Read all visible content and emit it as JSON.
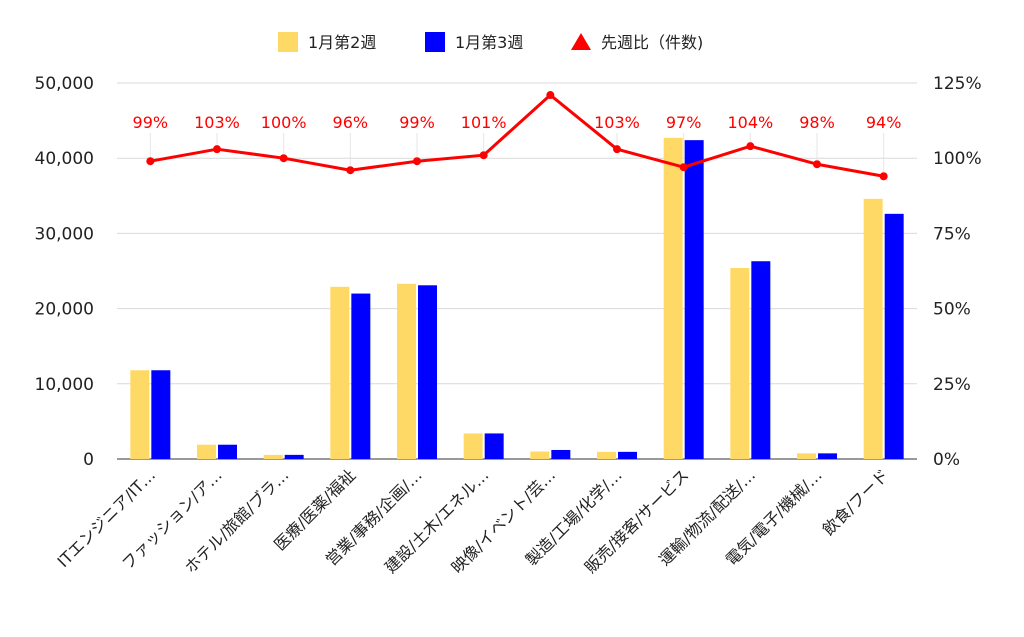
{
  "chart_data": {
    "type": "bar",
    "categories": [
      "ITエンジニア/IT…",
      "ファッション/ア…",
      "ホテル/旅館/ブラ…",
      "医療/医薬/福祉",
      "営業/事務/企画/…",
      "建設/土木/エネル…",
      "映像/イベント/芸…",
      "製造/工場/化学/…",
      "販売/接客/サービス",
      "運輸/物流/配送/…",
      "電気/電子/機械/…",
      "飲食/フード"
    ],
    "series": [
      {
        "name": "1月第2週",
        "type": "bar",
        "axis": "left",
        "color": "#FFD966",
        "values": [
          11800,
          1900,
          550,
          22900,
          23300,
          3400,
          1000,
          950,
          42700,
          25400,
          750,
          34600
        ]
      },
      {
        "name": "1月第3週",
        "type": "bar",
        "axis": "left",
        "color": "#0000FF",
        "values": [
          11800,
          1900,
          550,
          22000,
          23100,
          3400,
          1200,
          950,
          42400,
          26300,
          750,
          32600
        ]
      },
      {
        "name": "先週比（件数)",
        "type": "line",
        "axis": "right",
        "color": "#FF0000",
        "values": [
          99,
          103,
          100,
          96,
          99,
          101,
          121,
          103,
          97,
          104,
          98,
          94
        ],
        "data_labels": [
          "99%",
          "103%",
          "100%",
          "96%",
          "99%",
          "101%",
          "",
          "103%",
          "97%",
          "104%",
          "98%",
          "94%"
        ]
      }
    ],
    "y_left": {
      "ylim": [
        0,
        50000
      ],
      "ticks": [
        0,
        10000,
        20000,
        30000,
        40000,
        50000
      ],
      "tick_labels": [
        "0",
        "10,000",
        "20,000",
        "30,000",
        "40,000",
        "50,000"
      ]
    },
    "y_right": {
      "ylim": [
        0,
        125
      ],
      "ticks": [
        0,
        25,
        50,
        75,
        100,
        125
      ],
      "tick_labels": [
        "0%",
        "25%",
        "50%",
        "75%",
        "100%",
        "125%"
      ]
    },
    "legend_position": "top-center",
    "grid": "horizontal",
    "title": "",
    "xlabel": "",
    "ylabel": ""
  }
}
